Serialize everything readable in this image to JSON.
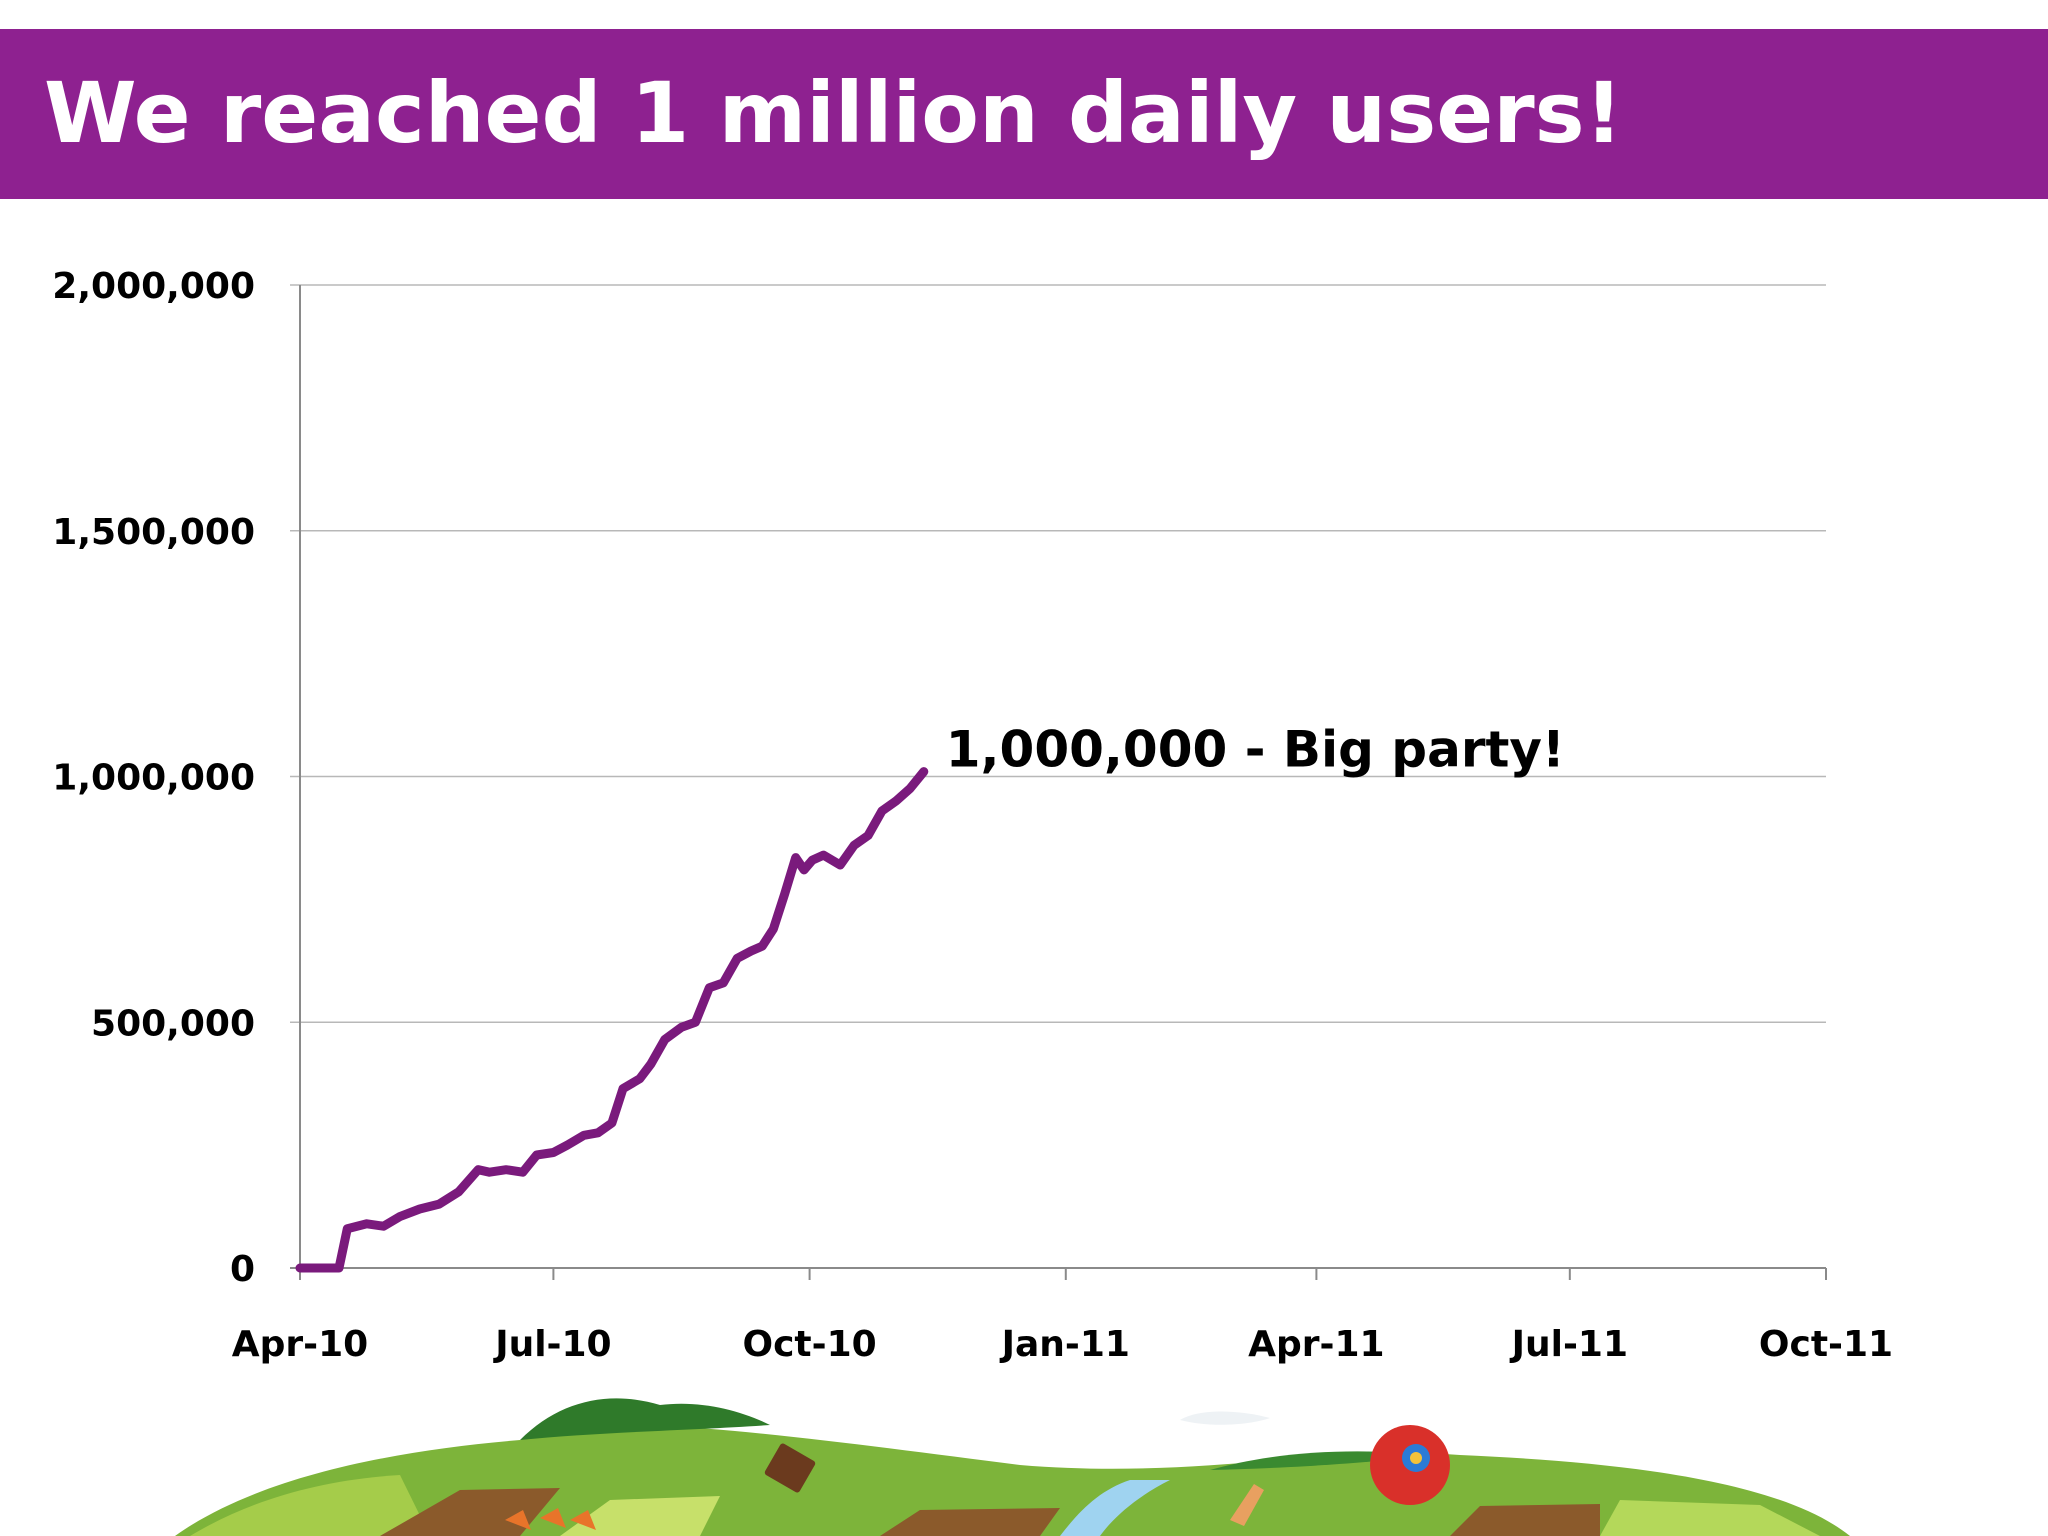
{
  "slide": {
    "title": "We reached 1 million daily users!",
    "colors": {
      "accent": "#8e2190",
      "line": "#7a1a7c",
      "grid": "#b8b8b8",
      "text": "#000000"
    }
  },
  "chart_data": {
    "type": "line",
    "title": "",
    "xlabel": "",
    "ylabel": "",
    "x_ticks": [
      "Apr-10",
      "Jul-10",
      "Oct-10",
      "Jan-11",
      "Apr-11",
      "Jul-11",
      "Oct-11"
    ],
    "x_tick_dates": [
      "2010-04-01",
      "2010-07-01",
      "2010-10-01",
      "2011-01-01",
      "2011-04-01",
      "2011-07-01",
      "2011-10-01"
    ],
    "xlim": [
      "2010-04-01",
      "2011-10-01"
    ],
    "y_ticks": [
      "0",
      "500,000",
      "1,000,000",
      "1,500,000",
      "2,000,000"
    ],
    "ylim": [
      0,
      2000000
    ],
    "grid": "horizontal",
    "series": [
      {
        "x": [
          "2010-04-01",
          "2010-04-10",
          "2010-04-15",
          "2010-04-18",
          "2010-04-25",
          "2010-05-01",
          "2010-05-07",
          "2010-05-14",
          "2010-05-21",
          "2010-05-28",
          "2010-06-04",
          "2010-06-08",
          "2010-06-14",
          "2010-06-20",
          "2010-06-25",
          "2010-07-01",
          "2010-07-06",
          "2010-07-12",
          "2010-07-17",
          "2010-07-22",
          "2010-07-26",
          "2010-08-01",
          "2010-08-05",
          "2010-08-10",
          "2010-08-16",
          "2010-08-21",
          "2010-08-26",
          "2010-08-31",
          "2010-09-05",
          "2010-09-10",
          "2010-09-14",
          "2010-09-18",
          "2010-09-22",
          "2010-09-26",
          "2010-09-29",
          "2010-10-02",
          "2010-10-06",
          "2010-10-12",
          "2010-10-17",
          "2010-10-22",
          "2010-10-27",
          "2010-11-01",
          "2010-11-06",
          "2010-11-11"
        ],
        "y": [
          0,
          0,
          0,
          80000,
          90000,
          85000,
          105000,
          120000,
          130000,
          155000,
          200000,
          195000,
          200000,
          195000,
          230000,
          235000,
          250000,
          270000,
          275000,
          295000,
          365000,
          385000,
          415000,
          465000,
          490000,
          500000,
          570000,
          580000,
          630000,
          645000,
          655000,
          690000,
          760000,
          835000,
          810000,
          830000,
          840000,
          820000,
          860000,
          880000,
          930000,
          950000,
          975000,
          1010000
        ]
      }
    ],
    "annotations": [
      {
        "text": "1,000,000 - Big party!",
        "x": "2010-11-11",
        "y": 1000000
      }
    ]
  }
}
